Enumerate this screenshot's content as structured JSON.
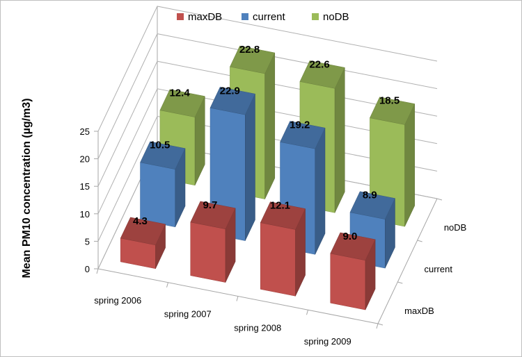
{
  "chart_data": {
    "type": "bar",
    "style": "3d-clustered",
    "categories": [
      "spring 2006",
      "spring 2007",
      "spring 2008",
      "spring 2009"
    ],
    "series": [
      {
        "name": "maxDB",
        "values": [
          4.3,
          9.7,
          12.1,
          9.0
        ],
        "color": "#c0504d"
      },
      {
        "name": "current",
        "values": [
          10.5,
          22.9,
          19.2,
          8.9
        ],
        "color": "#4f81bd"
      },
      {
        "name": "noDB",
        "values": [
          12.4,
          22.8,
          22.6,
          18.5
        ],
        "color": "#9bbb59"
      }
    ],
    "ylabel": "Mean PM10 concentration (µg/m3)",
    "ylim": [
      0,
      25
    ],
    "yticks": [
      "0",
      "5",
      "10",
      "15",
      "20",
      "25"
    ],
    "depth_labels": [
      "maxDB",
      "current",
      "noDB"
    ],
    "grid": true,
    "legend_position": "top"
  }
}
